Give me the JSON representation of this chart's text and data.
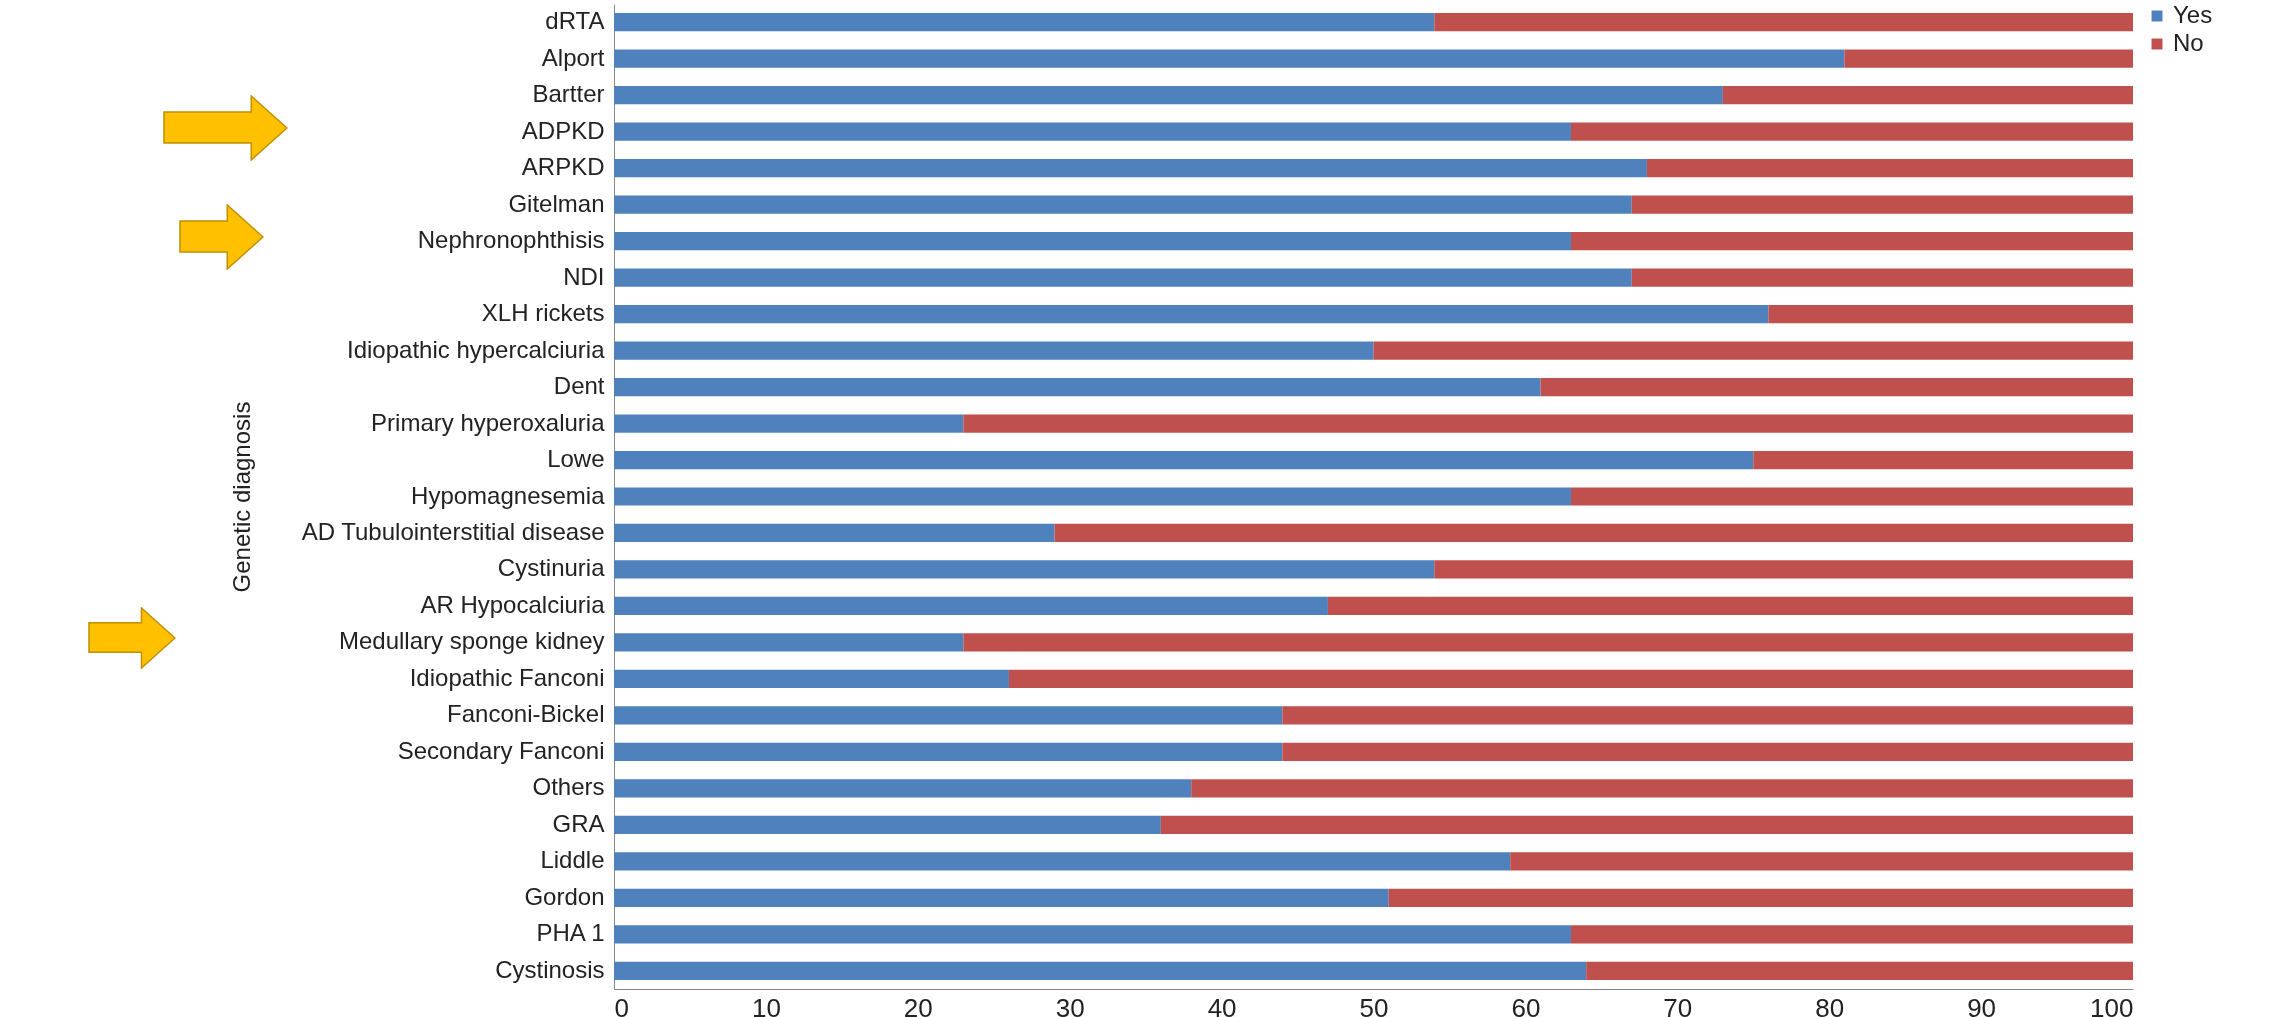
{
  "chart_data": {
    "type": "bar",
    "orientation": "horizontal",
    "stacked": true,
    "ylabel": "Genetic diagnosis",
    "categories": [
      "dRTA",
      "Alport",
      "Bartter",
      "ADPKD",
      "ARPKD",
      "Gitelman",
      "Nephronophthisis",
      "NDI",
      "XLH rickets",
      "Idiopathic hypercalciuria",
      "Dent",
      "Primary hyperoxaluria",
      "Lowe",
      "Hypomagnesemia",
      "AD Tubulointerstitial disease",
      "Cystinuria",
      "AR Hypocalciuria",
      "Medullary sponge kidney",
      "Idiopathic Fanconi",
      "Fanconi-Bickel",
      "Secondary Fanconi",
      "Others",
      "GRA",
      "Liddle",
      "Gordon",
      "PHA 1",
      "Cystinosis"
    ],
    "series": [
      {
        "name": "Yes",
        "color": "#4f81bd",
        "values": [
          54,
          81,
          73,
          63,
          68,
          67,
          63,
          67,
          76,
          50,
          61,
          23,
          75,
          63,
          29,
          54,
          47,
          23,
          26,
          44,
          44,
          38,
          36,
          59,
          51,
          63,
          64
        ]
      },
      {
        "name": "No",
        "color": "#c0504d",
        "values": [
          46,
          19,
          27,
          37,
          32,
          33,
          37,
          33,
          24,
          50,
          39,
          77,
          25,
          37,
          71,
          46,
          53,
          77,
          74,
          56,
          56,
          62,
          64,
          41,
          49,
          37,
          36
        ]
      }
    ],
    "xlim": [
      0,
      100
    ],
    "xticks": [
      0,
      10,
      20,
      30,
      40,
      50,
      60,
      70,
      80,
      90,
      100
    ],
    "grid": false,
    "legend": "right"
  }
}
